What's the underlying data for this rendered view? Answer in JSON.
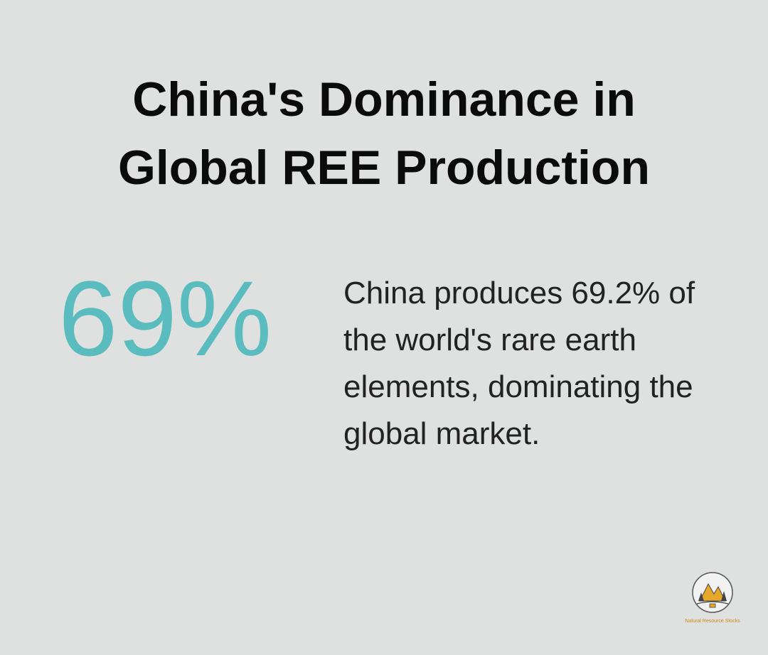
{
  "header": {
    "title": "China's Dominance in Global REE Production"
  },
  "stat": {
    "value": "69%",
    "description": "China produces 69.2% of the world's rare earth elements, dominating the global market."
  },
  "logo": {
    "text": "Natural Resource Stocks"
  }
}
